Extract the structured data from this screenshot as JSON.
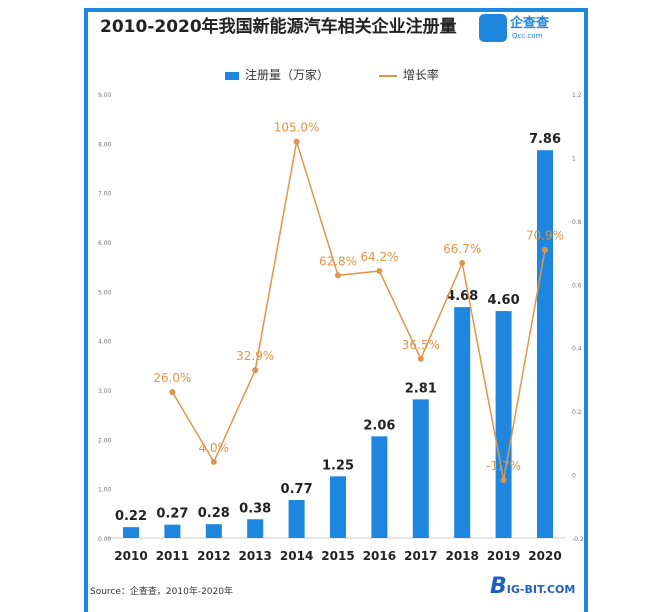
{
  "title": "2010-2020年我国新能源汽车相关企业注册量",
  "logo": {
    "name": "企查查",
    "sub": "Qcc.com"
  },
  "source": "Source：企查查，2010年-2020年",
  "watermark": {
    "name": "BIG-BIT.COM"
  },
  "colors": {
    "bar": "#1f86e0",
    "line": "#e0964a",
    "label_bar": "#222222",
    "label_line": "#e0964a",
    "frame": "#1f86e0"
  },
  "chart_data": {
    "type": "bar+line",
    "categories": [
      "2010",
      "2011",
      "2012",
      "2013",
      "2014",
      "2015",
      "2016",
      "2017",
      "2018",
      "2019",
      "2020"
    ],
    "series": [
      {
        "name": "注册量（万家）",
        "type": "bar",
        "axis": "left",
        "values": [
          0.22,
          0.27,
          0.28,
          0.38,
          0.77,
          1.25,
          2.06,
          2.81,
          4.68,
          4.6,
          7.86
        ],
        "labels": [
          "0.22",
          "0.27",
          "0.28",
          "0.38",
          "0.77",
          "1.25",
          "2.06",
          "2.81",
          "4.68",
          "4.60",
          "7.86"
        ]
      },
      {
        "name": "增长率",
        "type": "line",
        "axis": "right",
        "values": [
          null,
          0.26,
          0.04,
          0.329,
          1.05,
          0.628,
          0.642,
          0.365,
          0.667,
          -0.017,
          0.709
        ],
        "labels": [
          null,
          "26.0%",
          "4.0%",
          "32.9%",
          "105.0%",
          "62.8%",
          "64.2%",
          "36.5%",
          "66.7%",
          "-1.7%",
          "70.9%"
        ]
      }
    ],
    "left_axis": {
      "ylim": [
        0,
        9
      ],
      "ticks": [
        "0.00",
        "1.00",
        "2.00",
        "3.00",
        "4.00",
        "5.00",
        "6.00",
        "7.00",
        "8.00",
        "9.00"
      ]
    },
    "right_axis": {
      "ylim": [
        -0.2,
        1.2
      ],
      "ticks": [
        "-0.2",
        "0",
        "0.2",
        "0.4",
        "0.6",
        "0.8",
        "1",
        "1.2"
      ]
    },
    "legend": "top-center",
    "grid": false
  }
}
